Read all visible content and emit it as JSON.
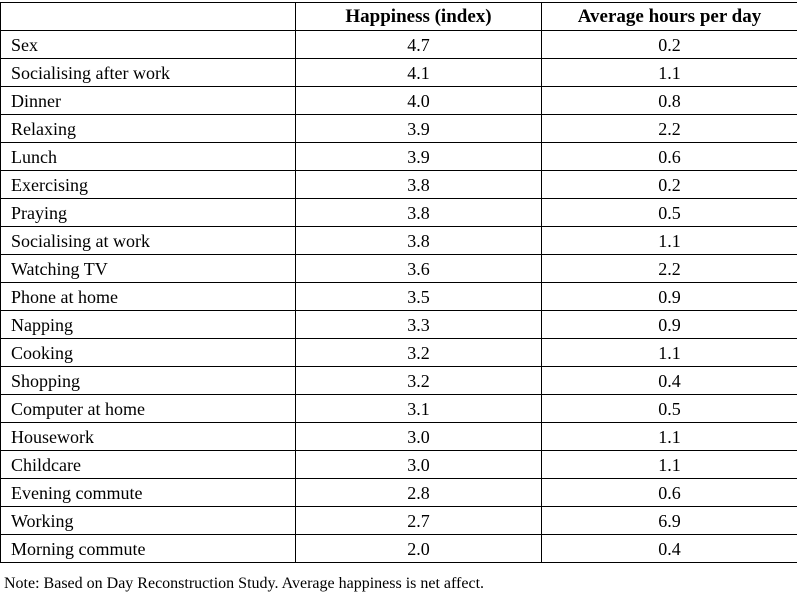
{
  "table": {
    "columns": [
      "",
      "Happiness (index)",
      "Average hours per day"
    ],
    "rows": [
      {
        "activity": "Sex",
        "happiness": "4.7",
        "hours": "0.2"
      },
      {
        "activity": "Socialising after work",
        "happiness": "4.1",
        "hours": "1.1"
      },
      {
        "activity": "Dinner",
        "happiness": "4.0",
        "hours": "0.8"
      },
      {
        "activity": "Relaxing",
        "happiness": "3.9",
        "hours": "2.2"
      },
      {
        "activity": "Lunch",
        "happiness": "3.9",
        "hours": "0.6"
      },
      {
        "activity": "Exercising",
        "happiness": "3.8",
        "hours": "0.2"
      },
      {
        "activity": "Praying",
        "happiness": "3.8",
        "hours": "0.5"
      },
      {
        "activity": "Socialising at work",
        "happiness": "3.8",
        "hours": "1.1"
      },
      {
        "activity": "Watching TV",
        "happiness": "3.6",
        "hours": "2.2"
      },
      {
        "activity": "Phone at home",
        "happiness": "3.5",
        "hours": "0.9"
      },
      {
        "activity": "Napping",
        "happiness": "3.3",
        "hours": "0.9"
      },
      {
        "activity": "Cooking",
        "happiness": "3.2",
        "hours": "1.1"
      },
      {
        "activity": "Shopping",
        "happiness": "3.2",
        "hours": "0.4"
      },
      {
        "activity": "Computer at home",
        "happiness": "3.1",
        "hours": "0.5"
      },
      {
        "activity": "Housework",
        "happiness": "3.0",
        "hours": "1.1"
      },
      {
        "activity": "Childcare",
        "happiness": "3.0",
        "hours": "1.1"
      },
      {
        "activity": "Evening commute",
        "happiness": "2.8",
        "hours": "0.6"
      },
      {
        "activity": "Working",
        "happiness": "2.7",
        "hours": "6.9"
      },
      {
        "activity": "Morning commute",
        "happiness": "2.0",
        "hours": "0.4"
      }
    ]
  },
  "note": "Note: Based on Day Reconstruction Study.  Average happiness is net affect.",
  "colors": {
    "border": "#000000",
    "text": "#000000",
    "background": "#ffffff"
  }
}
